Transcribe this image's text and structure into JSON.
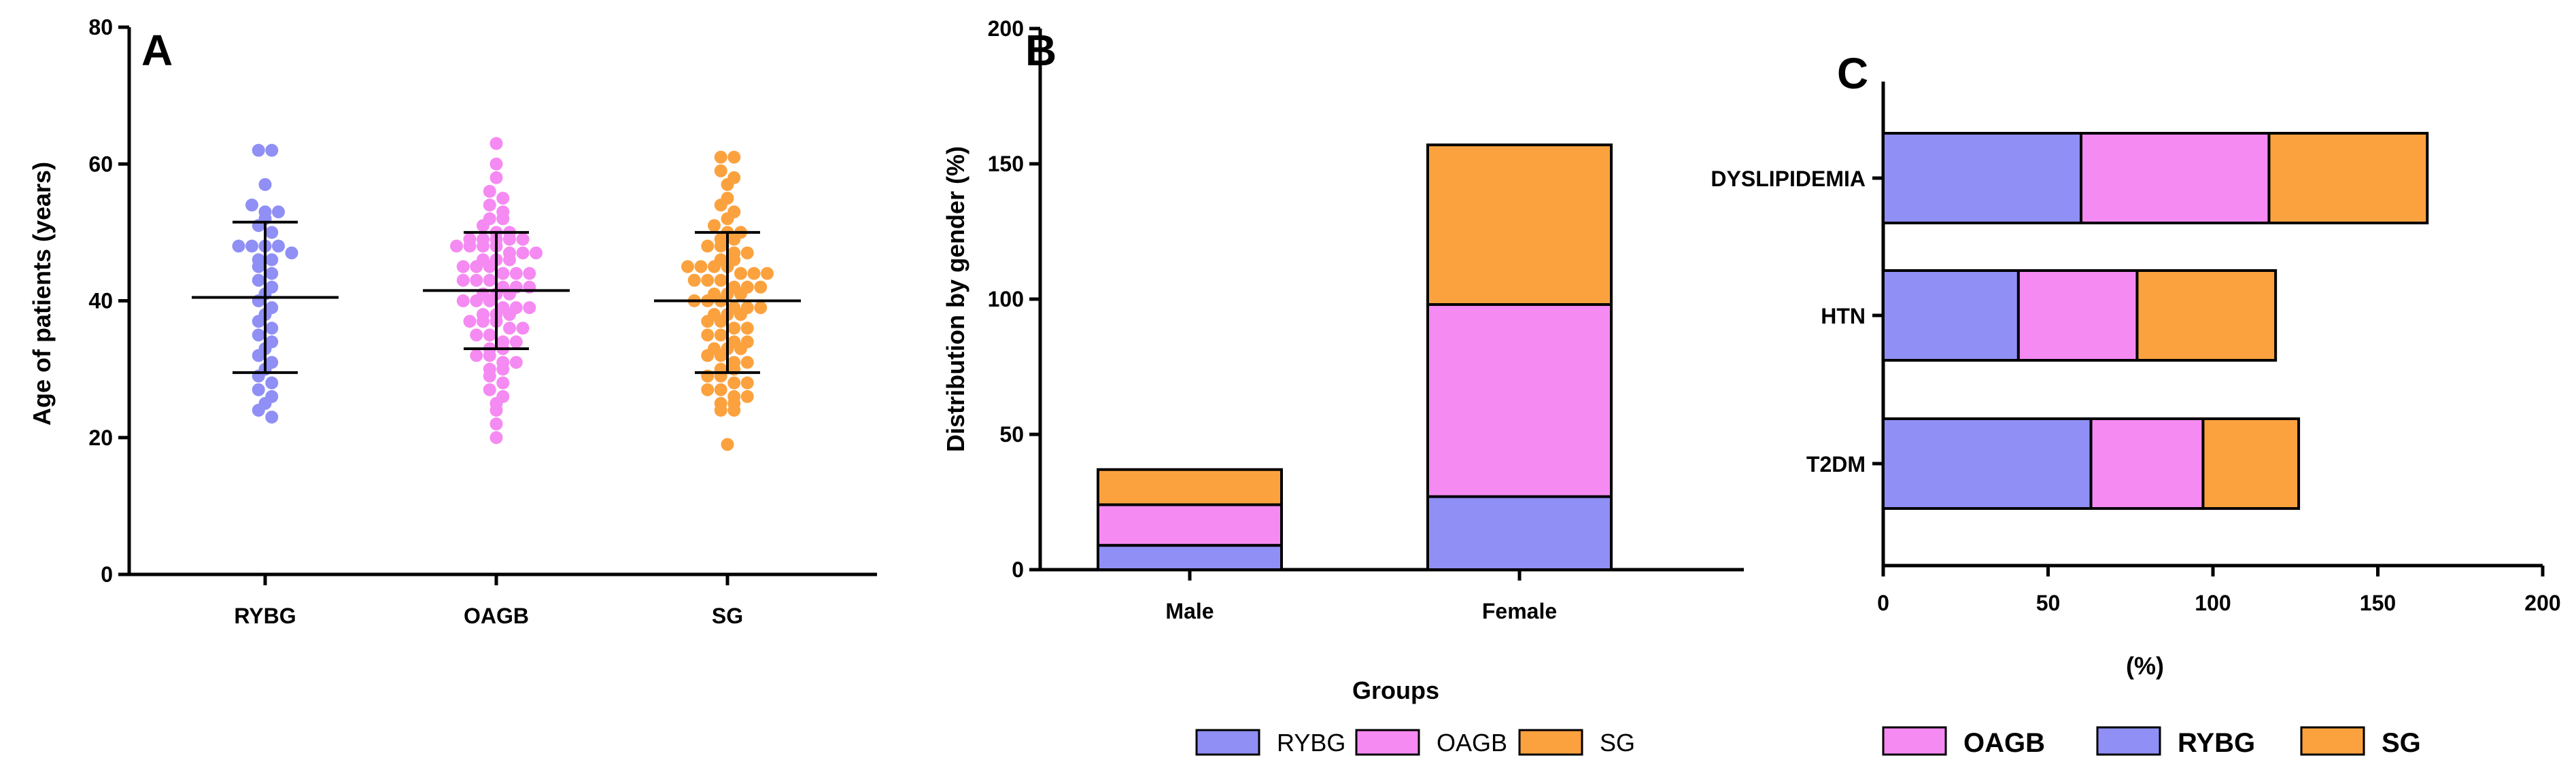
{
  "colors": {
    "RYBG": "#8f8ff5",
    "OAGB": "#f58af2",
    "SG": "#fba23f"
  },
  "chart_data": [
    {
      "panel": "A",
      "type": "scatter",
      "title": "A",
      "xlabel": "",
      "ylabel": "Age of patients (years)",
      "ylim": [
        0,
        80
      ],
      "yticks": [
        0,
        20,
        40,
        60,
        80
      ],
      "categories": [
        "RYBG",
        "OAGB",
        "SG"
      ],
      "summary": [
        {
          "group": "RYBG",
          "mean": 40.5,
          "sd_low": 29.5,
          "sd_high": 51.5
        },
        {
          "group": "OAGB",
          "mean": 41.5,
          "sd_low": 33,
          "sd_high": 50
        },
        {
          "group": "SG",
          "mean": 40,
          "sd_low": 29.5,
          "sd_high": 50
        }
      ],
      "series": [
        {
          "name": "RYBG",
          "values": [
            62,
            62,
            57,
            54,
            53,
            53,
            52,
            51,
            50,
            48,
            48,
            48,
            48,
            47,
            46,
            46,
            45,
            44,
            43,
            42,
            41,
            40,
            39,
            38,
            37,
            36,
            35,
            34,
            33,
            32,
            31,
            30,
            29,
            28,
            27,
            26,
            25,
            24,
            23
          ]
        },
        {
          "name": "OAGB",
          "values": [
            63,
            60,
            58,
            56,
            55,
            54,
            53,
            52,
            52,
            51,
            50,
            50,
            49,
            49,
            49,
            49,
            49,
            48,
            48,
            48,
            48,
            47,
            47,
            47,
            46,
            46,
            46,
            45,
            45,
            45,
            44,
            44,
            44,
            43,
            43,
            43,
            42,
            42,
            42,
            41,
            41,
            41,
            40,
            40,
            40,
            39,
            39,
            39,
            38,
            38,
            38,
            37,
            37,
            37,
            36,
            36,
            35,
            35,
            34,
            34,
            33,
            33,
            32,
            32,
            31,
            31,
            30,
            30,
            29,
            28,
            27,
            26,
            25,
            24,
            22,
            20
          ]
        },
        {
          "name": "SG",
          "values": [
            61,
            61,
            59,
            58,
            57,
            55,
            54,
            53,
            52,
            51,
            50,
            50,
            49,
            49,
            48,
            48,
            47,
            47,
            46,
            46,
            45,
            45,
            45,
            45,
            44,
            44,
            44,
            43,
            43,
            43,
            42,
            42,
            42,
            41,
            41,
            41,
            40,
            40,
            40,
            39,
            39,
            39,
            38,
            38,
            38,
            37,
            37,
            36,
            36,
            35,
            35,
            34,
            34,
            33,
            33,
            33,
            32,
            32,
            31,
            31,
            30,
            30,
            29,
            29,
            28,
            28,
            27,
            27,
            26,
            26,
            25,
            25,
            24,
            24,
            19
          ]
        }
      ]
    },
    {
      "panel": "B",
      "type": "bar",
      "title": "B",
      "xlabel": "Groups",
      "ylabel": "Distribution by gender  (%)",
      "ylim": [
        0,
        200
      ],
      "yticks": [
        0,
        50,
        100,
        150,
        200
      ],
      "categories": [
        "Male",
        "Female"
      ],
      "stacked": true,
      "series": [
        {
          "name": "RYBG",
          "values": [
            9,
            27
          ]
        },
        {
          "name": "OAGB",
          "values": [
            15,
            71
          ]
        },
        {
          "name": "SG",
          "values": [
            13,
            59
          ]
        }
      ],
      "legend": [
        "RYBG",
        "OAGB",
        "SG"
      ],
      "legend_position": "bottom"
    },
    {
      "panel": "C",
      "type": "bar",
      "orientation": "horizontal",
      "title": "C",
      "xlabel": "(%)",
      "ylabel": "",
      "xlim": [
        0,
        200
      ],
      "xticks": [
        0,
        50,
        100,
        150,
        200
      ],
      "categories": [
        "DYSLIPIDEMIA",
        "HTN",
        "T2DM"
      ],
      "stacked": true,
      "series": [
        {
          "name": "RYBG",
          "values": [
            60,
            41,
            63
          ]
        },
        {
          "name": "OAGB",
          "values": [
            57,
            36,
            34
          ]
        },
        {
          "name": "SG",
          "values": [
            48,
            42,
            29
          ]
        }
      ],
      "legend": [
        "OAGB",
        "RYBG",
        "SG"
      ],
      "legend_position": "bottom"
    }
  ]
}
